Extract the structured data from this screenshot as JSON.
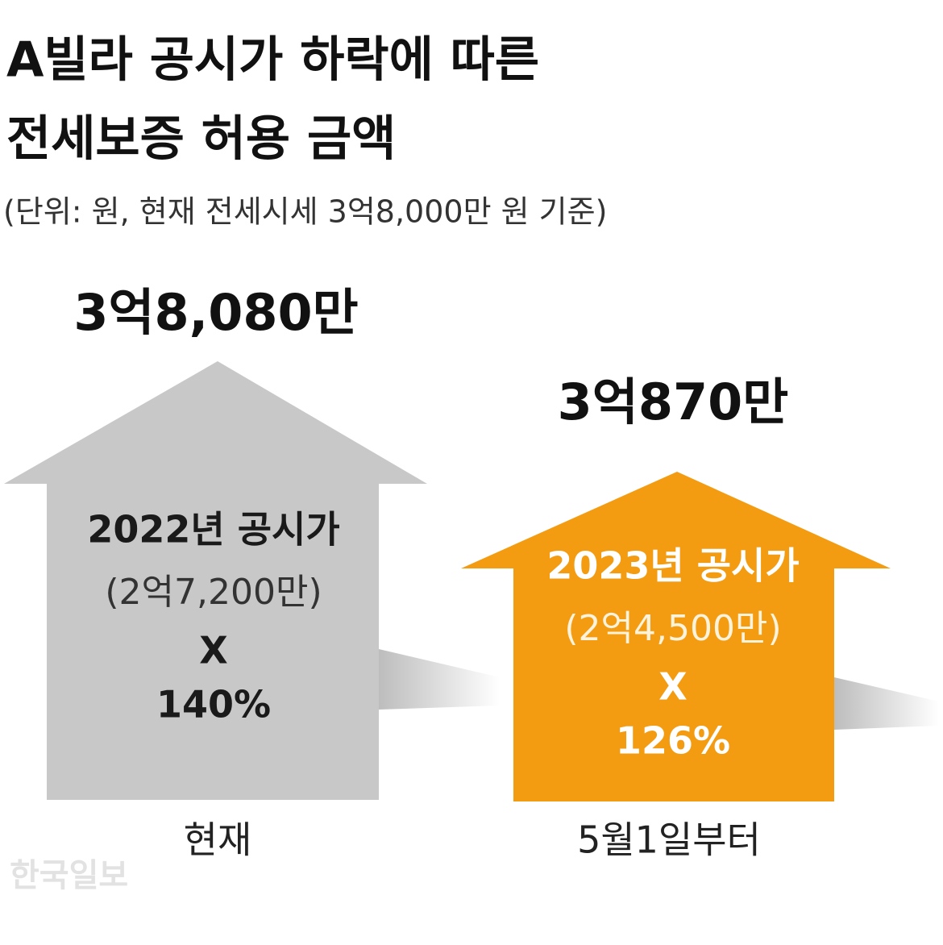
{
  "header": {
    "title": [
      "A빌라 공시가 하락에 따른",
      "전세보증 허용 금액"
    ],
    "subtitle": "(단위: 원, 현재 전세시세 3억8,000만 원 기준)"
  },
  "items": [
    {
      "amount": "3억8,080만",
      "basis": "2022년 공시가",
      "price": "(2억7,200만)",
      "operator": "X",
      "ratio": "140%",
      "caption": "현재"
    },
    {
      "amount": "3억870만",
      "basis": "2023년 공시가",
      "price": "(2억4,500만)",
      "operator": "X",
      "ratio": "126%",
      "caption": "5월1일부터"
    }
  ],
  "footer": {
    "watermark": "한국일보"
  }
}
